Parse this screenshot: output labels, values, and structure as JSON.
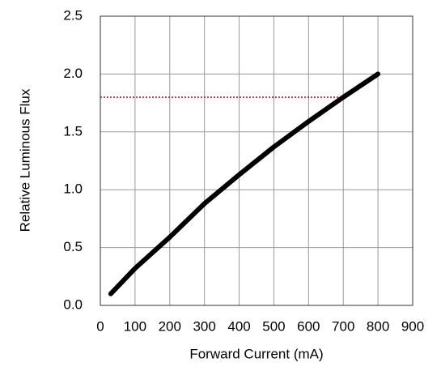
{
  "chart_data": {
    "type": "line",
    "x_label": "Forward Current (mA)",
    "y_label": "Relative Luminous Flux",
    "x": [
      30,
      100,
      200,
      300,
      400,
      500,
      600,
      700,
      800
    ],
    "series": [
      {
        "color": "#000000",
        "values": [
          0.1,
          0.32,
          0.59,
          0.88,
          1.13,
          1.37,
          1.59,
          1.8,
          2.0
        ]
      }
    ],
    "xlim": [
      0,
      900
    ],
    "xticks": [
      0,
      100,
      200,
      300,
      400,
      500,
      600,
      700,
      800,
      900
    ],
    "ylim": [
      0,
      2.5
    ],
    "yticks": [
      {
        "value": 0,
        "label": "0.0"
      },
      0.5,
      {
        "value": 1,
        "label": "1.0"
      },
      1.5,
      {
        "value": 2,
        "label": "2.0"
      },
      2.5
    ],
    "grid": true,
    "reference_line": {
      "y": 1.8,
      "x_end": 700,
      "color": "#c00000"
    }
  }
}
